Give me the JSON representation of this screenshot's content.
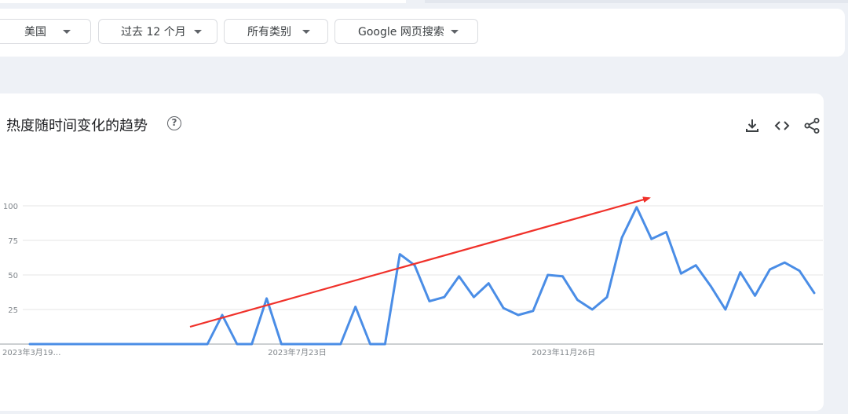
{
  "filters": {
    "region": "美国",
    "timeframe": "过去 12 个月",
    "category": "所有类别",
    "property": "Google 网页搜索"
  },
  "chart_section": {
    "title": "热度随时间变化的趋势"
  },
  "colors": {
    "line": "#4a8de6",
    "arrow": "#f0312a",
    "grid": "#e6e6e6",
    "axis": "#9aa0a6"
  },
  "icons": [
    "chevron-down-icon",
    "help-icon",
    "download-icon",
    "embed-code-icon",
    "share-icon"
  ],
  "chart_data": {
    "type": "line",
    "title": "热度随时间变化的趋势",
    "xlabel": "",
    "ylabel": "",
    "ylim": [
      0,
      100
    ],
    "yticks": [
      25,
      50,
      75,
      100
    ],
    "x_tick_labels": [
      "2023年3月19…",
      "2023年7月23日",
      "2023年11月26日"
    ],
    "grid": true,
    "series": [
      {
        "values": [
          0,
          0,
          0,
          0,
          0,
          0,
          0,
          0,
          0,
          0,
          0,
          0,
          0,
          21,
          0,
          0,
          33,
          0,
          0,
          0,
          0,
          0,
          27,
          0,
          0,
          65,
          57,
          31,
          34,
          49,
          34,
          44,
          26,
          21,
          24,
          50,
          49,
          32,
          25,
          34,
          77,
          99,
          76,
          81,
          51,
          57,
          42,
          25,
          52,
          35,
          54,
          59,
          53,
          37
        ]
      }
    ],
    "annotation": "red upward trend arrow"
  }
}
